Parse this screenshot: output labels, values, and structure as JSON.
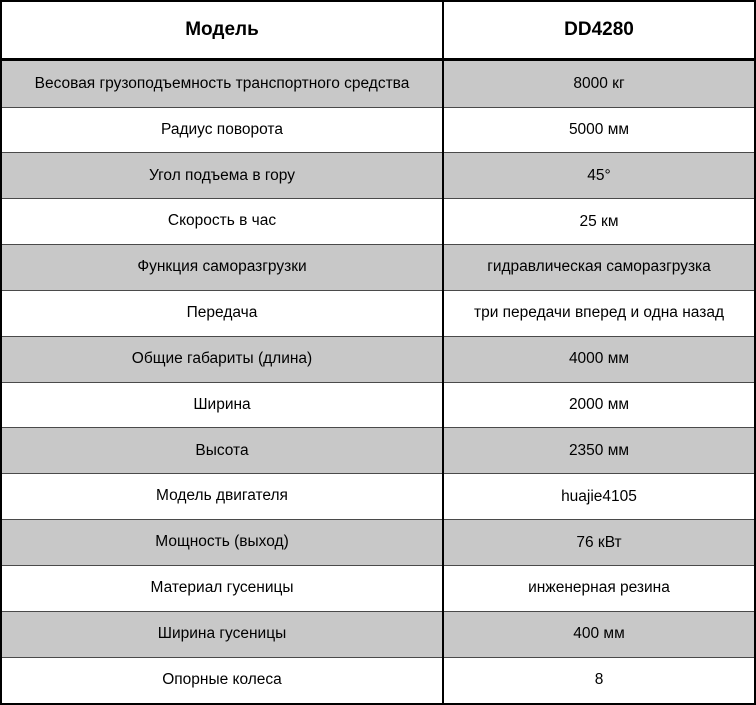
{
  "table": {
    "header": {
      "col1": "Модель",
      "col2": "DD4280"
    },
    "rows": [
      {
        "label": "Весовая грузоподъемность транспортного средства",
        "value": "8000 кг"
      },
      {
        "label": "Радиус поворота",
        "value": "5000 мм"
      },
      {
        "label": "Угол подъема в гору",
        "value": "45°"
      },
      {
        "label": "Скорость в час",
        "value": "25 км"
      },
      {
        "label": "Функция саморазгрузки",
        "value": "гидравлическая саморазгрузка"
      },
      {
        "label": "Передача",
        "value": "три передачи вперед и одна назад"
      },
      {
        "label": "Общие габариты (длина)",
        "value": "4000 мм"
      },
      {
        "label": "Ширина",
        "value": "2000 мм"
      },
      {
        "label": "Высота",
        "value": "2350 мм"
      },
      {
        "label": "Модель двигателя",
        "value": "huajie4105"
      },
      {
        "label": "Мощность (выход)",
        "value": "76 кВт"
      },
      {
        "label": "Материал гусеницы",
        "value": "инженерная резина"
      },
      {
        "label": "Ширина гусеницы",
        "value": "400 мм"
      },
      {
        "label": "Опорные колеса",
        "value": "8"
      }
    ],
    "colors": {
      "row_shaded": "#c8c8c8",
      "row_plain": "#ffffff",
      "border": "#000000",
      "text": "#000000"
    }
  }
}
